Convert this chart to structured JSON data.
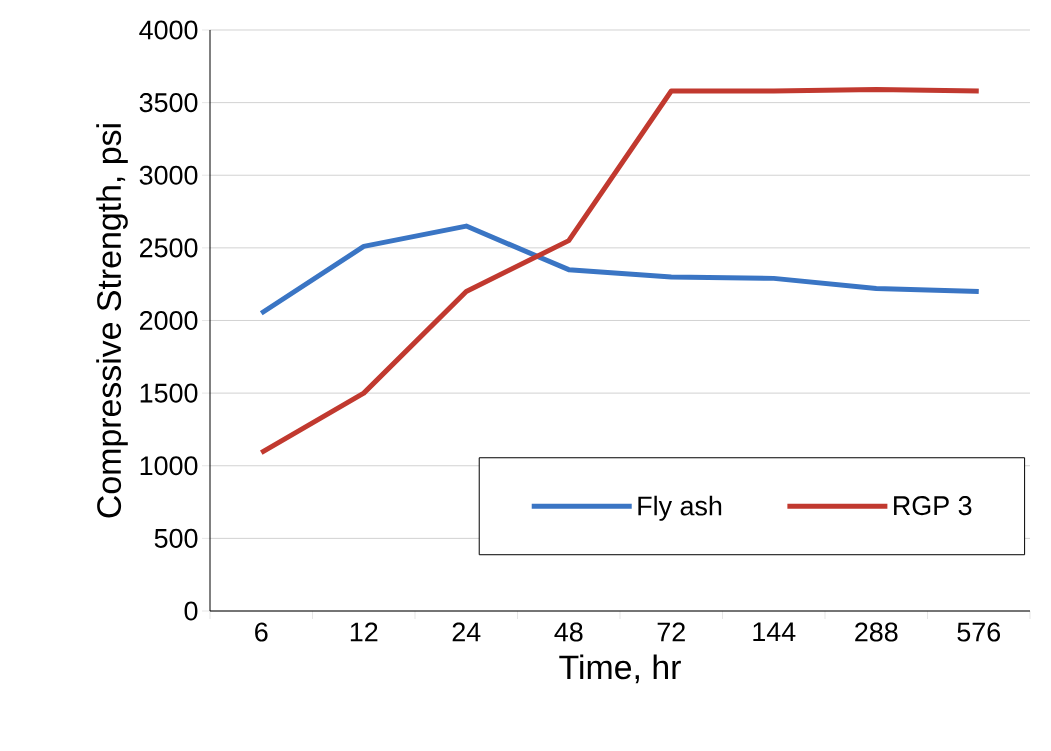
{
  "chart_data": {
    "type": "line",
    "xlabel": "Time, hr",
    "ylabel": "Compressive Strength, psi",
    "categories": [
      "6",
      "12",
      "24",
      "48",
      "72",
      "144",
      "288",
      "576"
    ],
    "series": [
      {
        "name": "Fly ash",
        "color": "#3a75c4",
        "values": [
          2050,
          2510,
          2650,
          2350,
          2300,
          2290,
          2220,
          2200
        ]
      },
      {
        "name": "RGP 3",
        "color": "#c1392f",
        "values": [
          1090,
          1500,
          2200,
          2550,
          3580,
          3580,
          3590,
          3580
        ]
      }
    ],
    "ylim": [
      0,
      4000
    ],
    "yticks": [
      0,
      500,
      1000,
      1500,
      2000,
      2500,
      3000,
      3500,
      4000
    ],
    "grid": "y",
    "legend": "bottom right"
  }
}
